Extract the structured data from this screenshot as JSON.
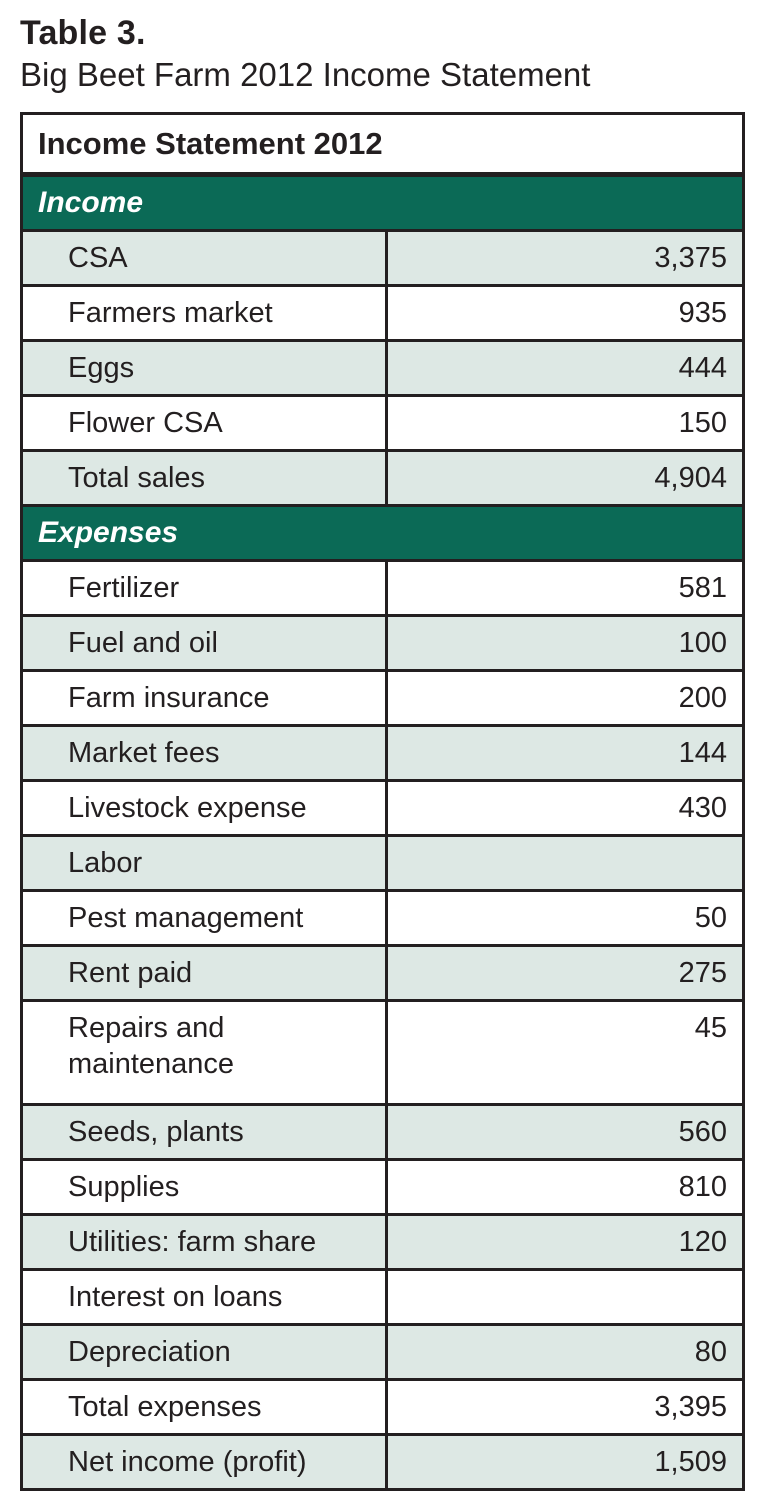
{
  "title_block": {
    "label": "Table 3.",
    "caption": "Big Beet Farm 2012 Income Statement"
  },
  "table": {
    "header": "Income Statement 2012",
    "sections": [
      {
        "heading": "Income",
        "rows": [
          {
            "label": "CSA",
            "value": "3,375"
          },
          {
            "label": "Farmers market",
            "value": "935"
          },
          {
            "label": "Eggs",
            "value": "444"
          },
          {
            "label": "Flower CSA",
            "value": "150"
          },
          {
            "label": "Total sales",
            "value": "4,904"
          }
        ]
      },
      {
        "heading": "Expenses",
        "rows": [
          {
            "label": "Fertilizer",
            "value": "581"
          },
          {
            "label": "Fuel and oil",
            "value": "100"
          },
          {
            "label": "Farm insurance",
            "value": "200"
          },
          {
            "label": "Market fees",
            "value": "144"
          },
          {
            "label": "Livestock expense",
            "value": "430"
          },
          {
            "label": "Labor",
            "value": ""
          },
          {
            "label": "Pest management",
            "value": "50"
          },
          {
            "label": "Rent paid",
            "value": "275"
          },
          {
            "label": "Repairs and maintenance",
            "value": "45"
          },
          {
            "label": "Seeds, plants",
            "value": "560"
          },
          {
            "label": "Supplies",
            "value": "810"
          },
          {
            "label": "Utilities: farm share",
            "value": "120"
          },
          {
            "label": "Interest on loans",
            "value": ""
          },
          {
            "label": "Depreciation",
            "value": "80"
          },
          {
            "label": "Total expenses",
            "value": "3,395"
          },
          {
            "label": "Net income (profit)",
            "value": "1,509"
          }
        ]
      }
    ]
  },
  "colors": {
    "band_green": "#0b6a56",
    "row_green": "#dde8e4",
    "border_black": "#231f20",
    "text_black": "#231f20",
    "row_white": "#ffffff"
  }
}
